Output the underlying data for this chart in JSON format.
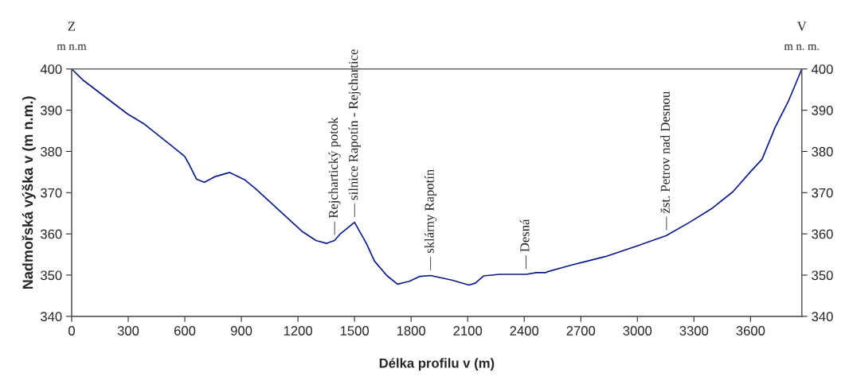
{
  "chart_data": {
    "type": "line",
    "xlabel": "Délka profilu v (m)",
    "ylabel": "Nadmořská výška v (m n.m.)",
    "x": [
      0,
      63,
      296,
      380,
      521,
      599,
      620,
      662,
      704,
      761,
      838,
      915,
      972,
      1225,
      1296,
      1352,
      1394,
      1422,
      1500,
      1563,
      1606,
      1671,
      1728,
      1791,
      1847,
      1903,
      2016,
      2107,
      2142,
      2184,
      2269,
      2409,
      2465,
      2515,
      2521,
      2648,
      2717,
      2830,
      2999,
      3154,
      3280,
      3393,
      3506,
      3604,
      3661,
      3731,
      3801,
      3872
    ],
    "series": [
      {
        "color": "#0a1a8a",
        "values": [
          400,
          397.2,
          389.1,
          386.8,
          381.7,
          378.8,
          377.1,
          373.3,
          372.5,
          373.9,
          374.9,
          373.2,
          371.1,
          360.5,
          358.4,
          357.7,
          358.4,
          359.9,
          362.8,
          357.7,
          353.4,
          349.9,
          347.8,
          348.5,
          349.7,
          349.9,
          348.8,
          347.6,
          348.1,
          349.8,
          350.2,
          350.2,
          350.6,
          350.6,
          350.8,
          352.4,
          353.2,
          354.5,
          357.1,
          359.6,
          362.9,
          366.1,
          370.2,
          375.3,
          378.1,
          385.9,
          392.2,
          400
        ]
      }
    ],
    "xlim": [
      0,
      3872
    ],
    "xticks": [
      0,
      300,
      600,
      900,
      1200,
      1500,
      1800,
      2100,
      2400,
      2700,
      3000,
      3300,
      3600
    ],
    "ylim": [
      340,
      400
    ],
    "yticks": [
      340,
      350,
      360,
      370,
      380,
      390,
      400
    ],
    "y2lim": [
      340,
      400
    ],
    "y2ticks": [
      340,
      350,
      360,
      370,
      380,
      390,
      400
    ],
    "grid": false,
    "legend": false,
    "annotations": [
      "Z",
      "m n.m",
      "V",
      "m n. m.",
      {
        "text": "— Rejchartický potok",
        "x": 1394,
        "y": 358.4
      },
      {
        "text": "— silnice Rapotín - Rejchartice",
        "x": 1500,
        "y": 362.8
      },
      {
        "text": "— sklárny Rapotín",
        "x": 1903,
        "y": 349.9
      },
      {
        "text": "— Desná",
        "x": 2409,
        "y": 350.2
      },
      {
        "text": "— žst. Petrov nad Desnou",
        "x": 3154,
        "y": 359.6
      }
    ]
  }
}
